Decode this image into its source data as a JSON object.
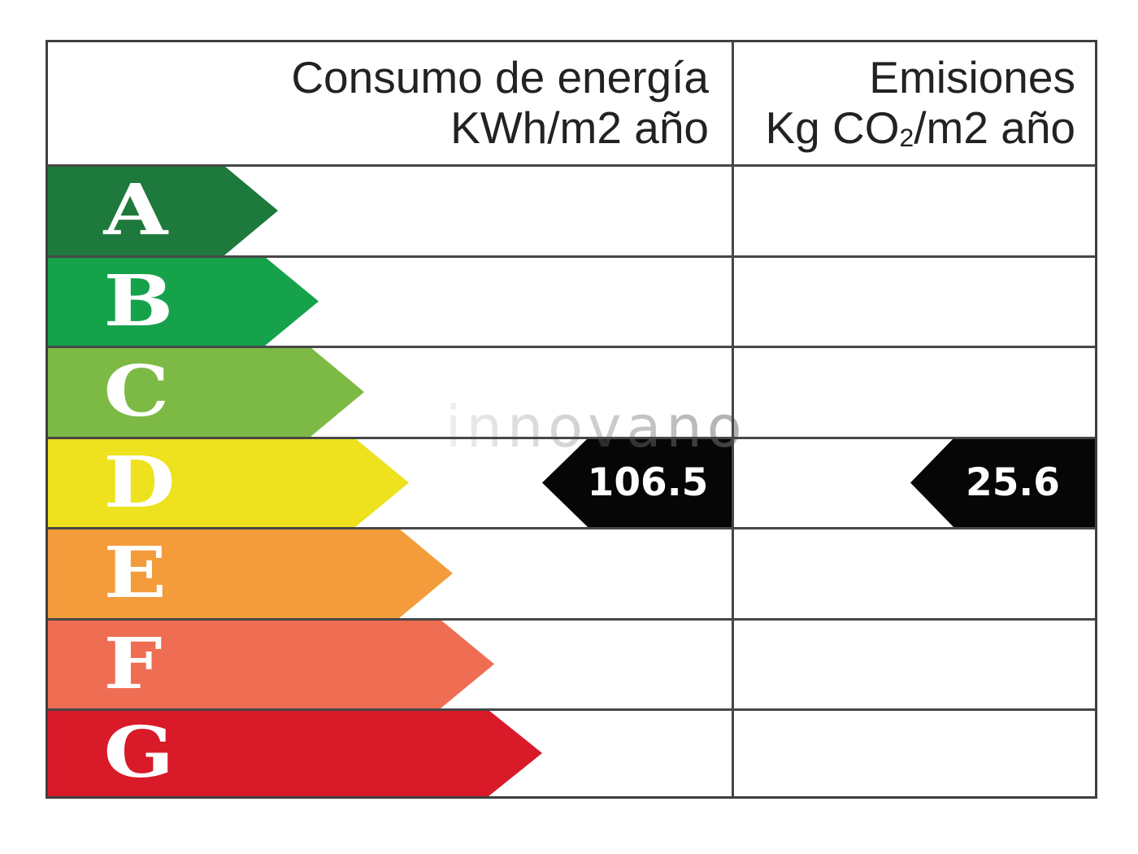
{
  "page": {
    "background": "#ffffff",
    "watermark": "innovano"
  },
  "chart_data": {
    "type": "bar",
    "orientation": "horizontal",
    "title": "",
    "columns": [
      {
        "title": "Consumo de energía",
        "unit": {
          "pre": "KWh/m2 año"
        },
        "value": "106.5"
      },
      {
        "title": "Emisiones",
        "unit": {
          "pre": "Kg CO",
          "sub": "2",
          "post": "/m2 año"
        },
        "value": "25.6"
      }
    ],
    "categories": [
      "A",
      "B",
      "C",
      "D",
      "E",
      "F",
      "G"
    ],
    "selected_grade": "D",
    "ratings": [
      {
        "grade": "A",
        "color": "#1e7a3c",
        "width_px": "283px"
      },
      {
        "grade": "B",
        "color": "#16a24b",
        "width_px": "333px"
      },
      {
        "grade": "C",
        "color": "#7cba45",
        "width_px": "389px"
      },
      {
        "grade": "D",
        "color": "#ede21d",
        "width_px": "444px"
      },
      {
        "grade": "E",
        "color": "#f49c3c",
        "width_px": "498px"
      },
      {
        "grade": "F",
        "color": "#ef6d53",
        "width_px": "549px"
      },
      {
        "grade": "G",
        "color": "#d81a29",
        "width_px": "608px"
      }
    ],
    "values": {
      "consumo": "106.5",
      "emisiones": "25.6"
    }
  }
}
